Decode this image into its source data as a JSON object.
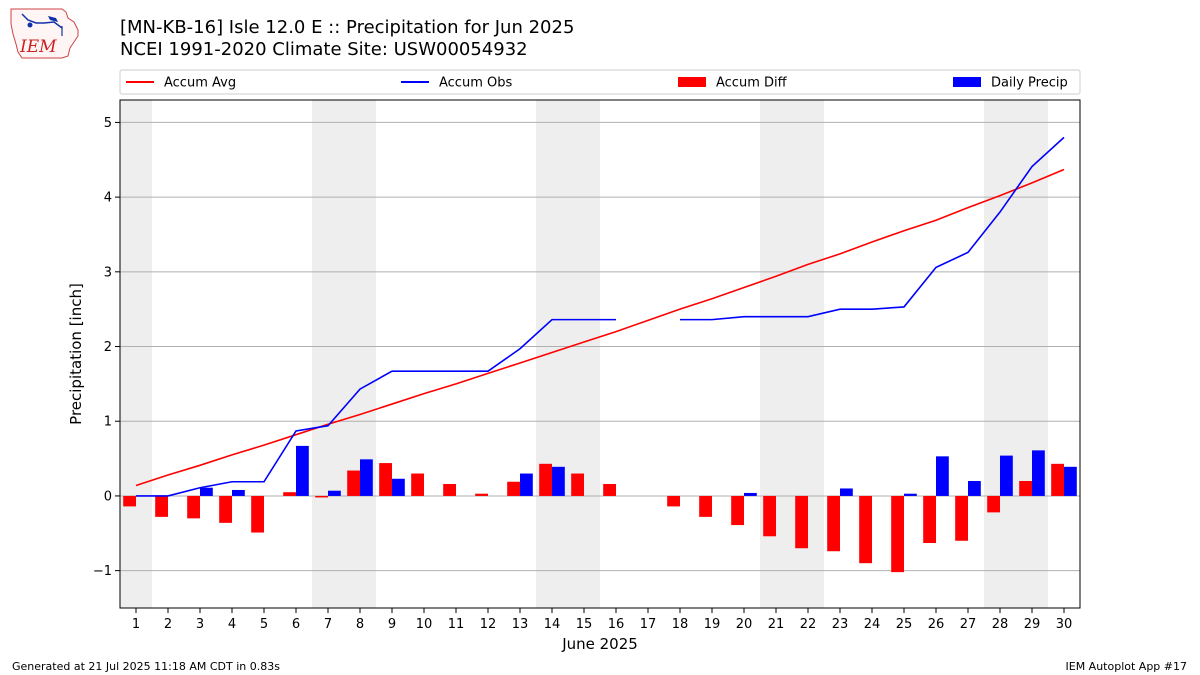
{
  "header": {
    "title_line1": "[MN-KB-16] Isle 12.0 E :: Precipitation for Jun 2025",
    "title_line2": "NCEI 1991-2020 Climate Site: USW00054932"
  },
  "logo": {
    "text": "IEM",
    "icon": "iem-iowa-logo-icon"
  },
  "footer": {
    "generated": "Generated at 21 Jul 2025 11:18 AM CDT in 0.83s",
    "app": "IEM Autoplot App #17"
  },
  "chart_data": {
    "type": "bar",
    "xlabel": "June 2025",
    "ylabel": "Precipitation [inch]",
    "ylim": [
      -1.5,
      5.3
    ],
    "xlim": [
      0.5,
      30.5
    ],
    "y_ticks": [
      -1,
      0,
      1,
      2,
      3,
      4,
      5
    ],
    "y_tick_labels": [
      "−1",
      "0",
      "1",
      "2",
      "3",
      "4",
      "5"
    ],
    "x_ticks": [
      1,
      2,
      3,
      4,
      5,
      6,
      7,
      8,
      9,
      10,
      11,
      12,
      13,
      14,
      15,
      16,
      17,
      18,
      19,
      20,
      21,
      22,
      23,
      24,
      25,
      26,
      27,
      28,
      29,
      30
    ],
    "grid": "horizontal",
    "weekend_shading": [
      [
        0.5,
        1.5
      ],
      [
        6.5,
        8.5
      ],
      [
        13.5,
        15.5
      ],
      [
        20.5,
        22.5
      ],
      [
        27.5,
        29.5
      ]
    ],
    "legend_placement": "top",
    "colors": {
      "accum_avg": "#ff0000",
      "accum_obs": "#0000ff",
      "accum_diff": "#ff0000",
      "daily_precip": "#0000ff",
      "weekend": "#eeeeee",
      "grid": "#b0b0b0"
    },
    "series": [
      {
        "name": "Accum Avg",
        "kind": "line",
        "values": [
          0.14,
          0.28,
          0.41,
          0.55,
          0.68,
          0.82,
          0.96,
          1.09,
          1.23,
          1.37,
          1.5,
          1.64,
          1.78,
          1.92,
          2.06,
          2.2,
          2.35,
          2.5,
          2.64,
          2.79,
          2.94,
          3.1,
          3.24,
          3.4,
          3.55,
          3.69,
          3.86,
          4.02,
          4.19,
          4.37
        ]
      },
      {
        "name": "Accum Obs",
        "kind": "line",
        "values": [
          0.0,
          0.0,
          0.11,
          0.19,
          0.19,
          0.87,
          0.94,
          1.43,
          1.67,
          1.67,
          1.67,
          1.67,
          1.97,
          2.36,
          2.36,
          2.36,
          null,
          2.36,
          2.36,
          2.4,
          2.4,
          2.4,
          2.5,
          2.5,
          2.53,
          3.06,
          3.26,
          3.8,
          4.41,
          4.8
        ]
      },
      {
        "name": "Accum Diff",
        "kind": "bar",
        "values": [
          -0.14,
          -0.28,
          -0.3,
          -0.36,
          -0.49,
          0.05,
          -0.02,
          0.34,
          0.44,
          0.3,
          0.16,
          0.03,
          0.19,
          0.43,
          0.3,
          0.16,
          null,
          -0.14,
          -0.28,
          -0.39,
          -0.54,
          -0.7,
          -0.74,
          -0.9,
          -1.02,
          -0.63,
          -0.6,
          -0.22,
          0.2,
          0.43
        ]
      },
      {
        "name": "Daily Precip",
        "kind": "bar",
        "values": [
          0.0,
          0.0,
          0.11,
          0.08,
          0.0,
          0.67,
          0.07,
          0.49,
          0.23,
          0.0,
          0.0,
          0.0,
          0.3,
          0.39,
          0.0,
          0.0,
          null,
          0.0,
          0.0,
          0.04,
          0.0,
          0.0,
          0.1,
          0.0,
          0.03,
          0.53,
          0.2,
          0.54,
          0.61,
          0.39
        ]
      }
    ]
  }
}
